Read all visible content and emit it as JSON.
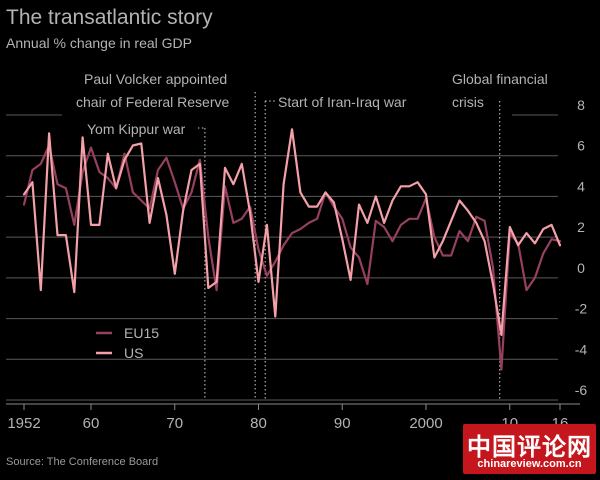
{
  "title": "The transatlantic story",
  "subtitle": "Annual % change in real GDP",
  "source": "Source: The Conference Board",
  "watermark": {
    "text": "中国评论网",
    "url": "chinareview.com.cn"
  },
  "colors": {
    "background": "#000000",
    "grid": "#5a5a5a",
    "text": "#b3b3b3",
    "eu15": "#96405e",
    "us": "#f4a0a8",
    "annotation_line": "#cfcfcf"
  },
  "chart_data": {
    "type": "line",
    "title": "The transatlantic story",
    "ylabel": "Annual % change in real GDP",
    "ylim": [
      -6,
      8
    ],
    "xlim": [
      1952,
      2016
    ],
    "yticks": [
      8,
      6,
      4,
      2,
      0,
      -2,
      -4,
      -6
    ],
    "xticks": [
      {
        "value": 1952,
        "label": "1952"
      },
      {
        "value": 1960,
        "label": "60"
      },
      {
        "value": 1970,
        "label": "70"
      },
      {
        "value": 1980,
        "label": "80"
      },
      {
        "value": 1990,
        "label": "90"
      },
      {
        "value": 2000,
        "label": "2000"
      },
      {
        "value": 2010,
        "label": "10"
      },
      {
        "value": 2016,
        "label": "16"
      }
    ],
    "grid": true,
    "legend_position": "lower-left",
    "x": [
      1952,
      1953,
      1954,
      1955,
      1956,
      1957,
      1958,
      1959,
      1960,
      1961,
      1962,
      1963,
      1964,
      1965,
      1966,
      1967,
      1968,
      1969,
      1970,
      1971,
      1972,
      1973,
      1974,
      1975,
      1976,
      1977,
      1978,
      1979,
      1980,
      1981,
      1982,
      1983,
      1984,
      1985,
      1986,
      1987,
      1988,
      1989,
      1990,
      1991,
      1992,
      1993,
      1994,
      1995,
      1996,
      1997,
      1998,
      1999,
      2000,
      2001,
      2002,
      2003,
      2004,
      2005,
      2006,
      2007,
      2008,
      2009,
      2010,
      2011,
      2012,
      2013,
      2014,
      2015,
      2016
    ],
    "series": [
      {
        "name": "EU15",
        "values": [
          3.6,
          5.3,
          5.6,
          6.5,
          4.6,
          4.4,
          2.6,
          5.2,
          6.4,
          5.2,
          4.9,
          4.4,
          6.1,
          4.2,
          3.8,
          3.4,
          5.3,
          5.9,
          4.7,
          3.4,
          4.2,
          5.8,
          2.0,
          -0.6,
          4.5,
          2.7,
          2.9,
          3.5,
          1.4,
          0.1,
          0.8,
          1.6,
          2.2,
          2.4,
          2.7,
          2.9,
          4.2,
          3.5,
          2.9,
          1.5,
          1.0,
          -0.3,
          2.8,
          2.5,
          1.8,
          2.6,
          2.9,
          2.9,
          3.9,
          2.0,
          1.1,
          1.1,
          2.3,
          1.8,
          3.0,
          2.8,
          0.5,
          -4.5,
          2.2,
          1.7,
          -0.6,
          0.0,
          1.2,
          1.9,
          1.8
        ]
      },
      {
        "name": "US",
        "values": [
          4.1,
          4.7,
          -0.6,
          7.1,
          2.1,
          2.1,
          -0.7,
          6.9,
          2.6,
          2.6,
          6.1,
          4.4,
          5.8,
          6.5,
          6.6,
          2.7,
          4.9,
          3.1,
          0.2,
          3.3,
          5.3,
          5.6,
          -0.5,
          -0.2,
          5.4,
          4.6,
          5.6,
          3.2,
          -0.2,
          2.6,
          -1.9,
          4.6,
          7.3,
          4.2,
          3.5,
          3.5,
          4.2,
          3.7,
          1.9,
          -0.1,
          3.6,
          2.7,
          4.0,
          2.7,
          3.8,
          4.5,
          4.5,
          4.7,
          4.1,
          1.0,
          1.8,
          2.8,
          3.8,
          3.3,
          2.7,
          1.8,
          -0.3,
          -2.8,
          2.5,
          1.6,
          2.2,
          1.7,
          2.4,
          2.6,
          1.6
        ]
      }
    ],
    "annotations": [
      {
        "label": "Yom Kippur war",
        "year": 1973
      },
      {
        "label": "Paul Volcker appointed chair of Federal Reserve",
        "lines": [
          "Paul Volcker appointed",
          "chair of Federal Reserve"
        ],
        "year": 1979
      },
      {
        "label": "Start of Iran-Iraq war",
        "year": 1980
      },
      {
        "label": "Global financial crisis",
        "lines": [
          "Global financial",
          "crisis"
        ],
        "year": 2009
      }
    ]
  }
}
